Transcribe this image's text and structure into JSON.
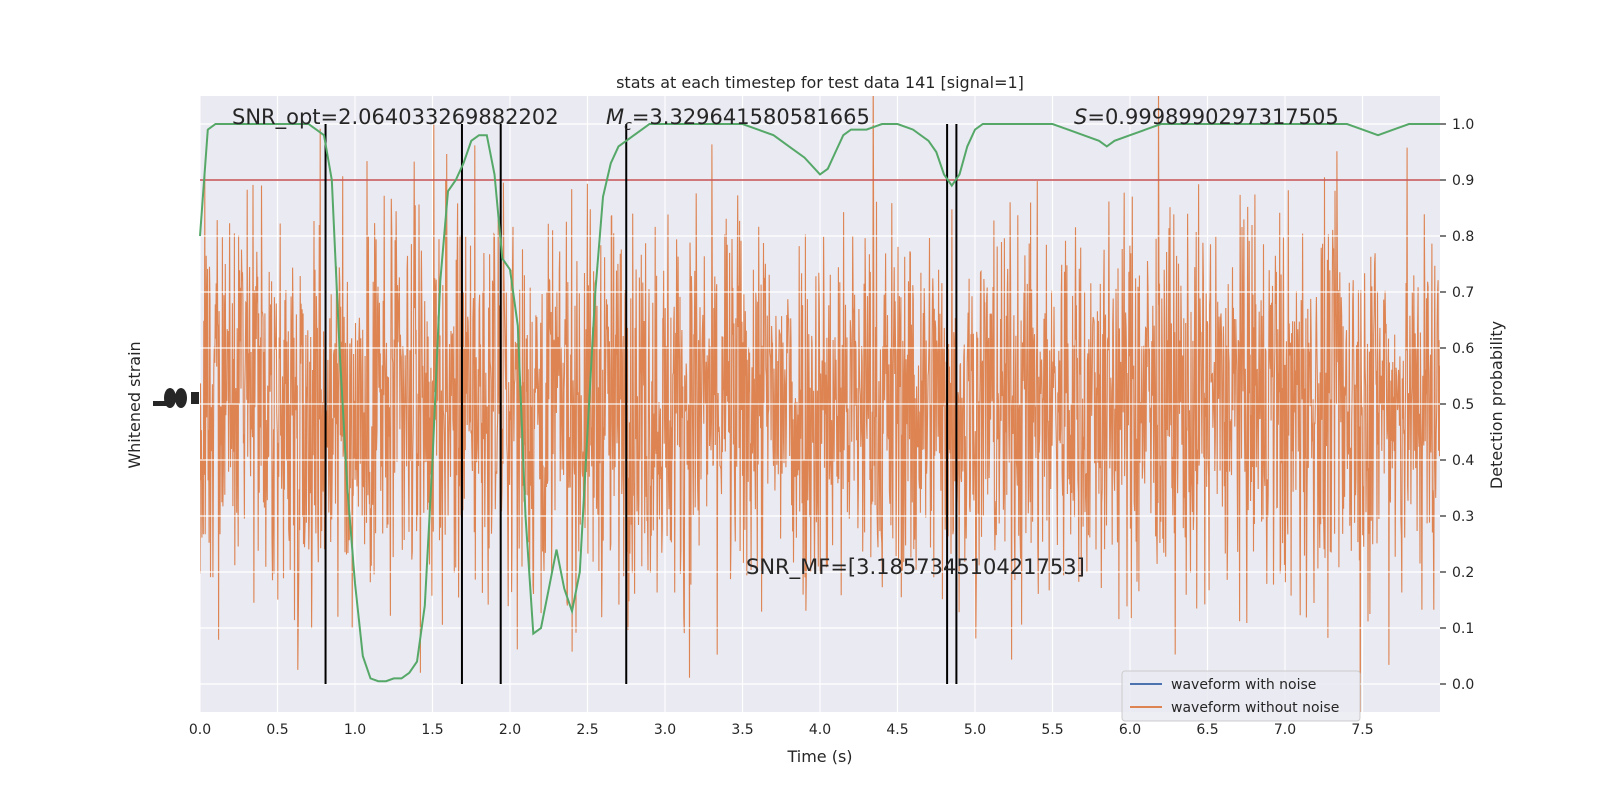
{
  "chart_data": {
    "type": "line",
    "title": "stats at each timestep for test data 141 [signal=1]",
    "xlabel": "Time (s)",
    "ylabel_left": "Whitened strain",
    "ylabel_right": "Detection probability",
    "xlim": [
      0.0,
      8.0
    ],
    "ylim_right": [
      -0.05,
      1.05
    ],
    "x_ticks": [
      0.0,
      0.5,
      1.0,
      1.5,
      2.0,
      2.5,
      3.0,
      3.5,
      4.0,
      4.5,
      5.0,
      5.5,
      6.0,
      6.5,
      7.0,
      7.5
    ],
    "x_tick_labels": [
      "0.0",
      "0.5",
      "1.0",
      "1.5",
      "2.0",
      "2.5",
      "3.0",
      "3.5",
      "4.0",
      "4.5",
      "5.0",
      "5.5",
      "6.0",
      "6.5",
      "7.0",
      "7.5"
    ],
    "y_ticks_right": [
      0.0,
      0.1,
      0.2,
      0.3,
      0.4,
      0.5,
      0.6,
      0.7,
      0.8,
      0.9,
      1.0
    ],
    "y_tick_labels_right": [
      "0.0",
      "0.1",
      "0.2",
      "0.3",
      "0.4",
      "0.5",
      "0.6",
      "0.7",
      "0.8",
      "0.9",
      "1.0"
    ],
    "grid": true,
    "legend_placement": "lower-right",
    "threshold": 0.9,
    "vertical_lines_x": [
      0.81,
      1.69,
      1.94,
      2.75,
      4.82,
      4.88
    ],
    "annotations": {
      "snr_opt": "SNR_opt=2.064033269882202",
      "mc_symbol": "M",
      "mc_sub": "c",
      "mc_value": "=3.329641580581665",
      "s_symbol": "S",
      "s_value": "=0.9998990297317505",
      "snr_mf": "SNR_MF=[3.185734510421753]"
    },
    "series": [
      {
        "name": "waveform with noise",
        "color": "#4c72b0"
      },
      {
        "name": "waveform without noise",
        "color": "#dd8452"
      },
      {
        "color": "#55a868",
        "x": [
          0.0,
          0.05,
          0.1,
          0.15,
          0.2,
          0.3,
          0.4,
          0.5,
          0.6,
          0.7,
          0.75,
          0.8,
          0.85,
          0.9,
          0.95,
          1.0,
          1.05,
          1.1,
          1.15,
          1.2,
          1.25,
          1.3,
          1.35,
          1.4,
          1.45,
          1.5,
          1.55,
          1.6,
          1.65,
          1.7,
          1.75,
          1.8,
          1.85,
          1.9,
          1.95,
          2.0,
          2.05,
          2.1,
          2.15,
          2.2,
          2.25,
          2.3,
          2.35,
          2.4,
          2.45,
          2.5,
          2.55,
          2.6,
          2.65,
          2.7,
          2.75,
          2.8,
          2.85,
          2.9,
          3.0,
          3.1,
          3.2,
          3.3,
          3.4,
          3.5,
          3.6,
          3.7,
          3.8,
          3.9,
          4.0,
          4.05,
          4.1,
          4.15,
          4.2,
          4.3,
          4.4,
          4.5,
          4.6,
          4.7,
          4.75,
          4.8,
          4.85,
          4.9,
          4.95,
          5.0,
          5.05,
          5.1,
          5.15,
          5.2,
          5.3,
          5.4,
          5.5,
          5.6,
          5.7,
          5.8,
          5.85,
          5.9,
          6.0,
          6.1,
          6.2,
          6.3,
          6.5,
          6.7,
          6.9,
          7.0,
          7.2,
          7.4,
          7.5,
          7.6,
          7.7,
          7.8,
          7.9,
          8.0
        ],
        "values": [
          0.8,
          0.99,
          1.0,
          1.0,
          1.0,
          1.0,
          1.0,
          1.0,
          1.0,
          1.0,
          0.99,
          0.98,
          0.9,
          0.6,
          0.35,
          0.18,
          0.05,
          0.01,
          0.005,
          0.005,
          0.01,
          0.01,
          0.02,
          0.04,
          0.14,
          0.4,
          0.72,
          0.88,
          0.9,
          0.93,
          0.97,
          0.98,
          0.98,
          0.91,
          0.76,
          0.74,
          0.64,
          0.3,
          0.09,
          0.1,
          0.17,
          0.24,
          0.17,
          0.13,
          0.2,
          0.45,
          0.7,
          0.87,
          0.93,
          0.96,
          0.97,
          0.98,
          0.99,
          1.0,
          1.0,
          1.0,
          1.0,
          1.0,
          1.0,
          1.0,
          0.99,
          0.98,
          0.96,
          0.94,
          0.91,
          0.92,
          0.95,
          0.98,
          0.99,
          0.99,
          1.0,
          1.0,
          0.99,
          0.97,
          0.95,
          0.91,
          0.89,
          0.91,
          0.96,
          0.99,
          1.0,
          1.0,
          1.0,
          1.0,
          1.0,
          1.0,
          1.0,
          0.99,
          0.98,
          0.97,
          0.96,
          0.97,
          0.98,
          0.99,
          1.0,
          1.0,
          1.0,
          1.0,
          1.0,
          1.0,
          1.0,
          1.0,
          0.99,
          0.98,
          0.99,
          1.0,
          1.0,
          1.0
        ]
      },
      {
        "color": "#c44e52"
      }
    ]
  }
}
